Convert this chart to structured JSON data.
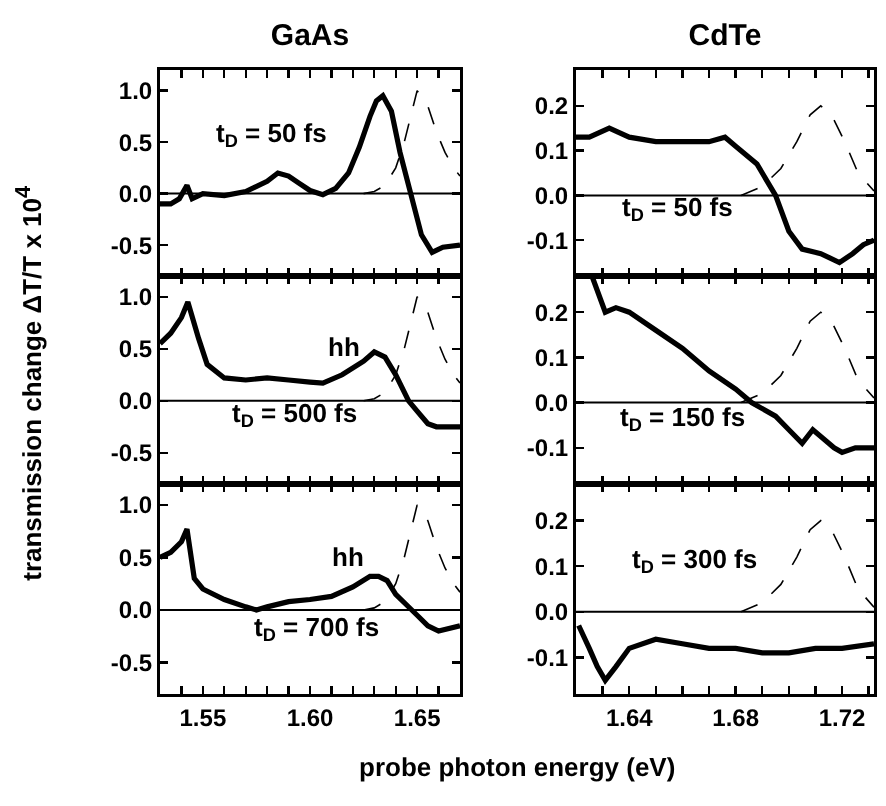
{
  "chart_data": [
    {
      "type": "line",
      "title": "GaAs",
      "tick_labels": "y",
      "xlim": [
        1.53,
        1.67
      ],
      "ylim": [
        -0.8,
        1.2
      ],
      "xticks": [
        {
          "value": 1.53,
          "label": null
        },
        {
          "value": 1.54,
          "label": null
        },
        1.55,
        {
          "value": 1.56,
          "label": null
        },
        {
          "value": 1.57,
          "label": null
        },
        {
          "value": 1.58,
          "label": null
        },
        {
          "value": 1.59,
          "label": null
        },
        {
          "value": 1.6,
          "label": null
        },
        {
          "value": 1.61,
          "label": null
        },
        {
          "value": 1.62,
          "label": null
        },
        {
          "value": 1.63,
          "label": null
        },
        {
          "value": 1.64,
          "label": null
        },
        1.65,
        {
          "value": 1.66,
          "label": null
        },
        {
          "value": 1.67,
          "label": null
        }
      ],
      "yticks": [
        {
          "value": -0.5,
          "label": "-0.5"
        },
        {
          "value": 0,
          "label": "0.0"
        },
        {
          "value": 0.5,
          "label": "0.5"
        },
        {
          "value": 1,
          "label": "1.0"
        }
      ],
      "ylabel": "transmission change ΔT/T x 10$^{4}$",
      "series": [
        {
          "color": "#000000",
          "line_style": "solid",
          "x": [
            1.53,
            1.535,
            1.539,
            1.5426,
            1.545,
            1.55,
            1.56,
            1.57,
            1.58,
            1.585,
            1.59,
            1.595,
            1.6,
            1.606,
            1.612,
            1.618,
            1.623,
            1.628,
            1.631,
            1.634,
            1.638,
            1.642,
            1.647,
            1.652,
            1.657,
            1.662,
            1.67
          ],
          "values": [
            -0.1,
            -0.1,
            -0.05,
            0.08,
            -0.05,
            0.0,
            -0.02,
            0.02,
            0.12,
            0.2,
            0.17,
            0.1,
            0.03,
            -0.01,
            0.05,
            0.2,
            0.45,
            0.75,
            0.9,
            0.95,
            0.8,
            0.4,
            0.0,
            -0.4,
            -0.57,
            -0.52,
            -0.5
          ]
        },
        {
          "color": "#000000",
          "line_style": "dashed",
          "x": [
            1.625,
            1.63,
            1.635,
            1.64,
            1.644,
            1.647,
            1.65,
            1.655,
            1.659,
            1.663,
            1.667,
            1.67
          ],
          "values": [
            0,
            0.02,
            0.08,
            0.25,
            0.5,
            0.75,
            1.0,
            0.85,
            0.6,
            0.4,
            0.25,
            0.17
          ]
        }
      ],
      "ref_lines": [
        {
          "axis": "y",
          "value": 0
        }
      ],
      "annotations": [
        "t$_{D}$ = 50 fs"
      ]
    },
    {
      "type": "line",
      "title": "CdTe",
      "tick_labels": "y",
      "xlim": [
        1.62,
        1.732
      ],
      "ylim": [
        -0.18,
        0.28
      ],
      "xticks": [
        {
          "value": 1.62,
          "label": null
        },
        {
          "value": 1.63,
          "label": null
        },
        1.64,
        {
          "value": 1.65,
          "label": null
        },
        {
          "value": 1.66,
          "label": null
        },
        {
          "value": 1.67,
          "label": null
        },
        1.68,
        {
          "value": 1.69,
          "label": null
        },
        {
          "value": 1.7,
          "label": null
        },
        {
          "value": 1.71,
          "label": null
        },
        1.72,
        {
          "value": 1.73,
          "label": null
        }
      ],
      "yticks": [
        {
          "value": -0.1,
          "label": "-0.1"
        },
        {
          "value": 0,
          "label": "0.0"
        },
        {
          "value": 0.1,
          "label": "0.1"
        },
        {
          "value": 0.2,
          "label": "0.2"
        }
      ],
      "series": [
        {
          "color": "#000000",
          "line_style": "solid",
          "x": [
            1.62,
            1.625,
            1.6325,
            1.64,
            1.65,
            1.66,
            1.67,
            1.676,
            1.68,
            1.688,
            1.695,
            1.7,
            1.705,
            1.712,
            1.719,
            1.724,
            1.728,
            1.732
          ],
          "values": [
            0.13,
            0.13,
            0.15,
            0.13,
            0.12,
            0.12,
            0.12,
            0.13,
            0.11,
            0.07,
            0.0,
            -0.08,
            -0.12,
            -0.13,
            -0.15,
            -0.13,
            -0.11,
            -0.1
          ]
        },
        {
          "color": "#000000",
          "line_style": "dashed",
          "x": [
            1.682,
            1.69,
            1.697,
            1.703,
            1.708,
            1.712,
            1.716,
            1.721,
            1.726,
            1.732
          ],
          "values": [
            0,
            0.02,
            0.06,
            0.12,
            0.18,
            0.2,
            0.18,
            0.12,
            0.05,
            0.01
          ]
        }
      ],
      "ref_lines": [
        {
          "axis": "y",
          "value": 0
        }
      ],
      "annotations": [
        "t$_{D}$ = 50 fs"
      ]
    },
    {
      "type": "line",
      "tick_labels": "y",
      "xlim": [
        1.53,
        1.67
      ],
      "ylim": [
        -0.8,
        1.2
      ],
      "xticks": [
        {
          "value": 1.53,
          "label": null
        },
        {
          "value": 1.54,
          "label": null
        },
        1.55,
        {
          "value": 1.56,
          "label": null
        },
        {
          "value": 1.57,
          "label": null
        },
        {
          "value": 1.58,
          "label": null
        },
        {
          "value": 1.59,
          "label": null
        },
        {
          "value": 1.6,
          "label": null
        },
        {
          "value": 1.61,
          "label": null
        },
        {
          "value": 1.62,
          "label": null
        },
        {
          "value": 1.63,
          "label": null
        },
        {
          "value": 1.64,
          "label": null
        },
        1.65,
        {
          "value": 1.66,
          "label": null
        },
        {
          "value": 1.67,
          "label": null
        }
      ],
      "yticks": [
        {
          "value": -0.5,
          "label": "-0.5"
        },
        {
          "value": 0,
          "label": "0.0"
        },
        {
          "value": 0.5,
          "label": "0.5"
        },
        {
          "value": 1,
          "label": "1.0"
        }
      ],
      "series": [
        {
          "color": "#000000",
          "line_style": "solid",
          "x": [
            1.53,
            1.535,
            1.54,
            1.543,
            1.548,
            1.552,
            1.56,
            1.57,
            1.58,
            1.59,
            1.6,
            1.606,
            1.615,
            1.625,
            1.63,
            1.635,
            1.64,
            1.646,
            1.65,
            1.655,
            1.659,
            1.67
          ],
          "values": [
            0.55,
            0.65,
            0.8,
            0.95,
            0.6,
            0.35,
            0.22,
            0.2,
            0.22,
            0.2,
            0.18,
            0.17,
            0.25,
            0.38,
            0.47,
            0.42,
            0.25,
            0.0,
            -0.1,
            -0.22,
            -0.25,
            -0.25
          ]
        },
        {
          "color": "#000000",
          "line_style": "dashed",
          "x": [
            1.625,
            1.63,
            1.635,
            1.64,
            1.644,
            1.647,
            1.65,
            1.655,
            1.659,
            1.663,
            1.667,
            1.67
          ],
          "values": [
            0,
            0.02,
            0.08,
            0.25,
            0.5,
            0.75,
            1.0,
            0.85,
            0.6,
            0.4,
            0.25,
            0.17
          ]
        }
      ],
      "ref_lines": [
        {
          "axis": "y",
          "value": 0
        }
      ],
      "annotations": [
        "hh",
        "t$_{D}$ = 500 fs"
      ]
    },
    {
      "type": "line",
      "tick_labels": "y",
      "xlim": [
        1.62,
        1.732
      ],
      "ylim": [
        -0.18,
        0.28
      ],
      "xticks": [
        {
          "value": 1.62,
          "label": null
        },
        {
          "value": 1.63,
          "label": null
        },
        1.64,
        {
          "value": 1.65,
          "label": null
        },
        {
          "value": 1.66,
          "label": null
        },
        {
          "value": 1.67,
          "label": null
        },
        1.68,
        {
          "value": 1.69,
          "label": null
        },
        {
          "value": 1.7,
          "label": null
        },
        {
          "value": 1.71,
          "label": null
        },
        1.72,
        {
          "value": 1.73,
          "label": null
        }
      ],
      "yticks": [
        {
          "value": -0.1,
          "label": "-0.1"
        },
        {
          "value": 0,
          "label": "0.0"
        },
        {
          "value": 0.1,
          "label": "0.1"
        },
        {
          "value": 0.2,
          "label": "0.2"
        }
      ],
      "series": [
        {
          "color": "#000000",
          "line_style": "solid",
          "x": [
            1.626,
            1.631,
            1.635,
            1.64,
            1.65,
            1.66,
            1.67,
            1.68,
            1.686,
            1.695,
            1.7,
            1.705,
            1.709,
            1.713,
            1.717,
            1.72,
            1.725,
            1.732
          ],
          "values": [
            0.28,
            0.2,
            0.21,
            0.2,
            0.16,
            0.12,
            0.07,
            0.03,
            0.0,
            -0.03,
            -0.06,
            -0.09,
            -0.06,
            -0.08,
            -0.1,
            -0.11,
            -0.1,
            -0.1
          ]
        },
        {
          "color": "#000000",
          "line_style": "dashed",
          "x": [
            1.682,
            1.69,
            1.697,
            1.703,
            1.708,
            1.712,
            1.716,
            1.721,
            1.726,
            1.732
          ],
          "values": [
            0,
            0.02,
            0.06,
            0.12,
            0.18,
            0.2,
            0.18,
            0.12,
            0.05,
            0.01
          ]
        }
      ],
      "ref_lines": [
        {
          "axis": "y",
          "value": 0
        }
      ],
      "annotations": [
        "t$_{D}$ = 150 fs"
      ]
    },
    {
      "type": "line",
      "xlim": [
        1.53,
        1.67
      ],
      "ylim": [
        -0.8,
        1.2
      ],
      "xticks": [
        {
          "value": 1.53,
          "label": null
        },
        {
          "value": 1.54,
          "label": null
        },
        1.55,
        {
          "value": 1.56,
          "label": null
        },
        {
          "value": 1.57,
          "label": null
        },
        {
          "value": 1.58,
          "label": null
        },
        {
          "value": 1.59,
          "label": null
        },
        {
          "value": 1.6,
          "label": "1.60"
        },
        {
          "value": 1.61,
          "label": null
        },
        {
          "value": 1.62,
          "label": null
        },
        {
          "value": 1.63,
          "label": null
        },
        {
          "value": 1.64,
          "label": null
        },
        1.65,
        {
          "value": 1.66,
          "label": null
        },
        {
          "value": 1.67,
          "label": null
        }
      ],
      "yticks": [
        {
          "value": -0.5,
          "label": "-0.5"
        },
        {
          "value": 0,
          "label": "0.0"
        },
        {
          "value": 0.5,
          "label": "0.5"
        },
        {
          "value": 1,
          "label": "1.0"
        }
      ],
      "xlabel": "probe photon energy (eV)",
      "series": [
        {
          "color": "#000000",
          "line_style": "solid",
          "x": [
            1.53,
            1.535,
            1.54,
            1.5426,
            1.546,
            1.55,
            1.56,
            1.57,
            1.575,
            1.58,
            1.59,
            1.6,
            1.61,
            1.62,
            1.628,
            1.632,
            1.636,
            1.64,
            1.645,
            1.65,
            1.655,
            1.66,
            1.67
          ],
          "values": [
            0.5,
            0.55,
            0.65,
            0.77,
            0.3,
            0.2,
            0.1,
            0.03,
            0.0,
            0.03,
            0.08,
            0.1,
            0.13,
            0.22,
            0.32,
            0.32,
            0.28,
            0.15,
            0.05,
            -0.05,
            -0.15,
            -0.2,
            -0.15
          ]
        },
        {
          "color": "#000000",
          "line_style": "dashed",
          "x": [
            1.625,
            1.63,
            1.635,
            1.64,
            1.644,
            1.647,
            1.65,
            1.655,
            1.659,
            1.663,
            1.667,
            1.67
          ],
          "values": [
            0,
            0.02,
            0.08,
            0.25,
            0.5,
            0.75,
            1.0,
            0.85,
            0.6,
            0.4,
            0.25,
            0.17
          ]
        }
      ],
      "ref_lines": [
        {
          "axis": "y",
          "value": 0
        }
      ],
      "annotations": [
        "hh",
        "t$_{D}$ = 700 fs"
      ]
    },
    {
      "type": "line",
      "xlim": [
        1.62,
        1.732
      ],
      "ylim": [
        -0.18,
        0.28
      ],
      "xticks": [
        {
          "value": 1.62,
          "label": null
        },
        {
          "value": 1.63,
          "label": null
        },
        1.64,
        {
          "value": 1.65,
          "label": null
        },
        {
          "value": 1.66,
          "label": null
        },
        {
          "value": 1.67,
          "label": null
        },
        1.68,
        {
          "value": 1.69,
          "label": null
        },
        {
          "value": 1.7,
          "label": null
        },
        {
          "value": 1.71,
          "label": null
        },
        1.72,
        {
          "value": 1.73,
          "label": null
        }
      ],
      "yticks": [
        {
          "value": -0.1,
          "label": "-0.1"
        },
        {
          "value": 0,
          "label": "0.0"
        },
        {
          "value": 0.1,
          "label": "0.1"
        },
        {
          "value": 0.2,
          "label": "0.2"
        }
      ],
      "series": [
        {
          "color": "#000000",
          "line_style": "solid",
          "x": [
            1.621,
            1.625,
            1.628,
            1.631,
            1.635,
            1.64,
            1.65,
            1.66,
            1.67,
            1.68,
            1.69,
            1.7,
            1.71,
            1.72,
            1.732
          ],
          "values": [
            -0.03,
            -0.08,
            -0.12,
            -0.15,
            -0.12,
            -0.08,
            -0.06,
            -0.07,
            -0.08,
            -0.08,
            -0.09,
            -0.09,
            -0.08,
            -0.08,
            -0.07
          ]
        },
        {
          "color": "#000000",
          "line_style": "dashed",
          "x": [
            1.682,
            1.69,
            1.697,
            1.703,
            1.708,
            1.712,
            1.716,
            1.721,
            1.726,
            1.732
          ],
          "values": [
            0,
            0.02,
            0.06,
            0.12,
            0.18,
            0.2,
            0.18,
            0.12,
            0.05,
            0.01
          ]
        }
      ],
      "ref_lines": [
        {
          "axis": "y",
          "value": 0
        }
      ],
      "annotations": [
        "t$_{D}$ = 300 fs"
      ]
    }
  ]
}
